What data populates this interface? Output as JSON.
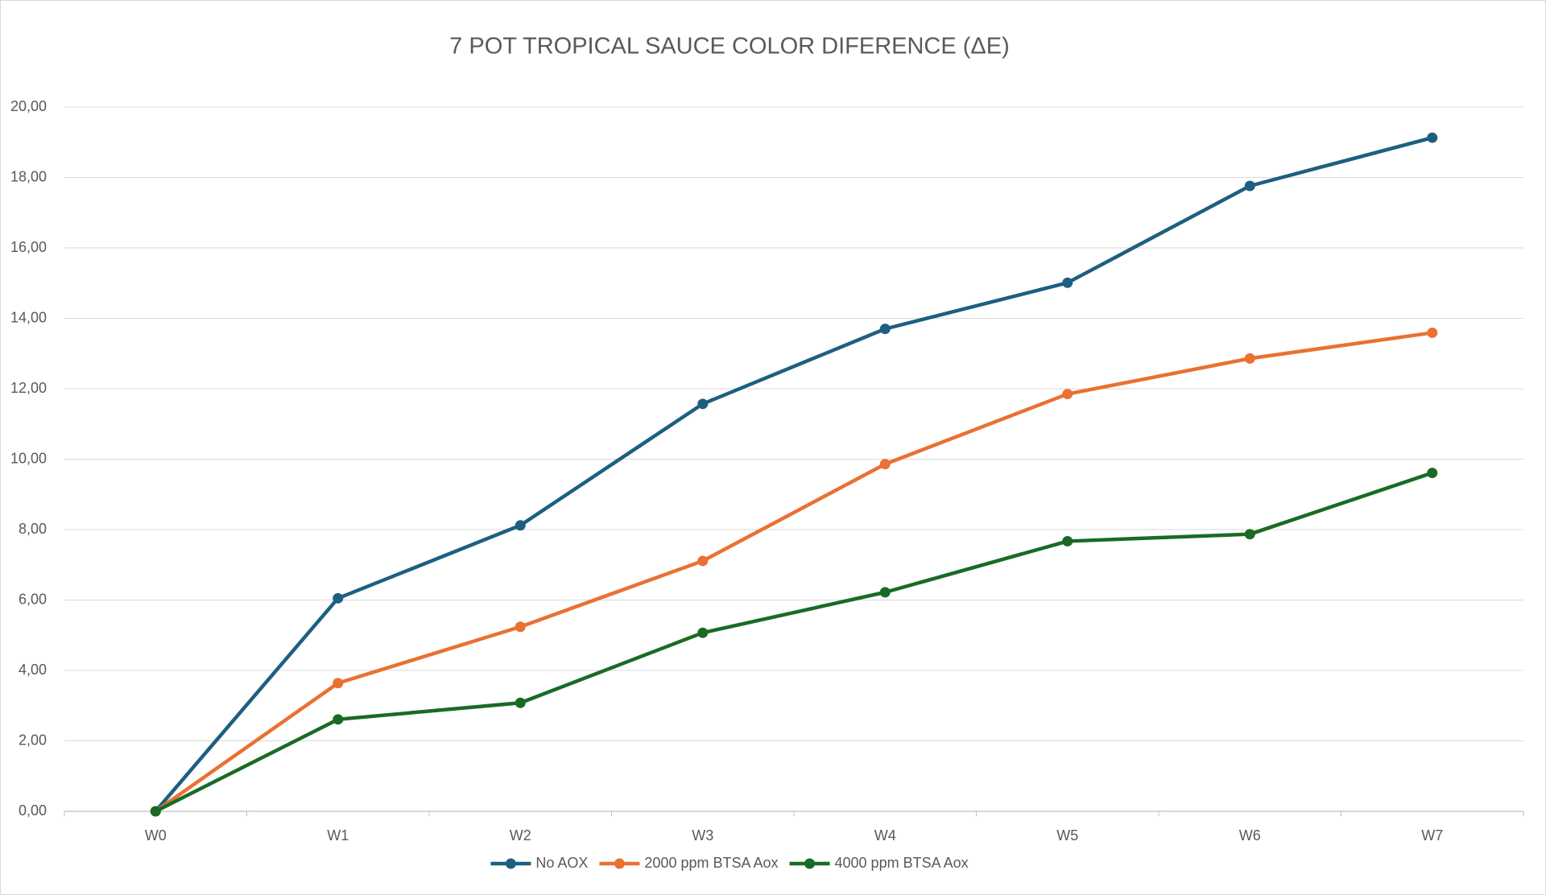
{
  "chart_data": {
    "type": "line",
    "title": "7 POT TROPICAL SAUCE COLOR DIFERENCE (ΔE)",
    "categories": [
      "W0",
      "W1",
      "W2",
      "W3",
      "W4",
      "W5",
      "W6",
      "W7"
    ],
    "series": [
      {
        "name": "No AOX",
        "color": "#1d5f80",
        "values": [
          0,
          6.05,
          8.12,
          11.57,
          13.7,
          15.01,
          17.76,
          19.13
        ]
      },
      {
        "name": "2000 ppm BTSA Aox",
        "color": "#e97132",
        "values": [
          0,
          3.64,
          5.24,
          7.11,
          9.86,
          11.85,
          12.86,
          13.59
        ]
      },
      {
        "name": "4000 ppm BTSA Aox",
        "color": "#196b24",
        "values": [
          0,
          2.61,
          3.08,
          5.07,
          6.22,
          7.67,
          7.87,
          9.61
        ]
      }
    ],
    "ylim": [
      0,
      20
    ],
    "yticks": [
      {
        "value": 0,
        "label": "0,00"
      },
      {
        "value": 2,
        "label": "2,00"
      },
      {
        "value": 4,
        "label": "4,00"
      },
      {
        "value": 6,
        "label": "6,00"
      },
      {
        "value": 8,
        "label": "8,00"
      },
      {
        "value": 10,
        "label": "10,00"
      },
      {
        "value": 12,
        "label": "12,00"
      },
      {
        "value": 14,
        "label": "14,00"
      },
      {
        "value": 16,
        "label": "16,00"
      },
      {
        "value": 18,
        "label": "18,00"
      },
      {
        "value": 20,
        "label": "20,00"
      }
    ],
    "grid": true,
    "legend": "bottom"
  }
}
